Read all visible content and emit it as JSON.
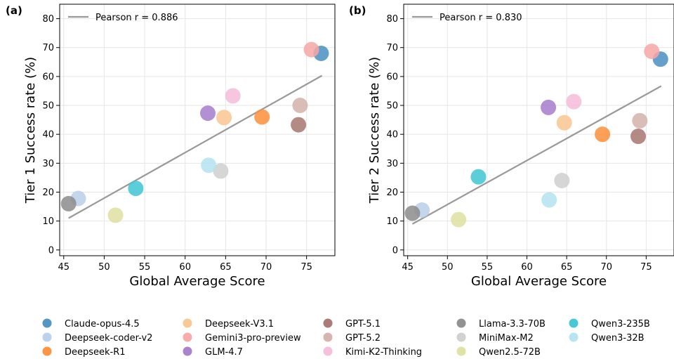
{
  "models": [
    {
      "name": "Claude-opus-4.5",
      "color": "#4a8fc2"
    },
    {
      "name": "Deepseek-coder-v2",
      "color": "#b8cfe9"
    },
    {
      "name": "Deepseek-R1",
      "color": "#fd8f3a"
    },
    {
      "name": "Deepseek-V3.1",
      "color": "#f9c68f"
    },
    {
      "name": "Gemini3-pro-preview",
      "color": "#f7a6a6"
    },
    {
      "name": "GLM-4.7",
      "color": "#a57ccb"
    },
    {
      "name": "GPT-5.1",
      "color": "#a6756e"
    },
    {
      "name": "GPT-5.2",
      "color": "#d3b1aa"
    },
    {
      "name": "Kimi-K2-Thinking",
      "color": "#f5bcd9"
    },
    {
      "name": "Llama-3.3-70B",
      "color": "#8c8c8c"
    },
    {
      "name": "MiniMax-M2",
      "color": "#cfcfcf"
    },
    {
      "name": "Qwen2.5-72B",
      "color": "#dfe0a0"
    },
    {
      "name": "Qwen3-235B",
      "color": "#3ec5d3"
    },
    {
      "name": "Qwen3-32B",
      "color": "#b3e3ee"
    }
  ],
  "chart_data": [
    {
      "type": "scatter",
      "panel_label": "(a)",
      "xlabel": "Global Average Score",
      "ylabel": "Tier 1 Success rate (%)",
      "xlim": [
        44.5,
        78.5
      ],
      "ylim": [
        -2,
        85
      ],
      "xticks": [
        45,
        50,
        55,
        60,
        65,
        70,
        75
      ],
      "yticks": [
        0,
        10,
        20,
        30,
        40,
        50,
        60,
        70,
        80
      ],
      "grid": true,
      "legend": {
        "position": "top-left",
        "entry": "Pearson r = 0.886"
      },
      "fit_line": {
        "x": [
          45.6,
          76.9
        ],
        "y": [
          11.0,
          60.3
        ]
      },
      "points": [
        {
          "model": "Claude-opus-4.5",
          "x": 76.8,
          "y": 68.0
        },
        {
          "model": "Deepseek-coder-v2",
          "x": 46.8,
          "y": 17.8
        },
        {
          "model": "Deepseek-R1",
          "x": 69.5,
          "y": 46.0
        },
        {
          "model": "Deepseek-V3.1",
          "x": 64.8,
          "y": 45.8
        },
        {
          "model": "Gemini3-pro-preview",
          "x": 75.6,
          "y": 69.3
        },
        {
          "model": "GLM-4.7",
          "x": 62.8,
          "y": 47.3
        },
        {
          "model": "GPT-5.1",
          "x": 74.0,
          "y": 43.3
        },
        {
          "model": "GPT-5.2",
          "x": 74.2,
          "y": 50.0
        },
        {
          "model": "Kimi-K2-Thinking",
          "x": 65.9,
          "y": 53.3
        },
        {
          "model": "Llama-3.3-70B",
          "x": 45.6,
          "y": 16.0
        },
        {
          "model": "MiniMax-M2",
          "x": 64.4,
          "y": 27.3
        },
        {
          "model": "Qwen2.5-72B",
          "x": 51.4,
          "y": 12.0
        },
        {
          "model": "Qwen3-235B",
          "x": 53.9,
          "y": 21.3
        },
        {
          "model": "Qwen3-32B",
          "x": 62.9,
          "y": 29.3
        }
      ]
    },
    {
      "type": "scatter",
      "panel_label": "(b)",
      "xlabel": "Global Average Score",
      "ylabel": "Tier 2 Success rate (%)",
      "xlim": [
        44.5,
        78.5
      ],
      "ylim": [
        -2,
        85
      ],
      "xticks": [
        45,
        50,
        55,
        60,
        65,
        70,
        75
      ],
      "yticks": [
        0,
        10,
        20,
        30,
        40,
        50,
        60,
        70,
        80
      ],
      "grid": true,
      "legend": {
        "position": "top-left",
        "entry": "Pearson r = 0.830"
      },
      "fit_line": {
        "x": [
          45.6,
          76.9
        ],
        "y": [
          9.0,
          56.7
        ]
      },
      "points": [
        {
          "model": "Claude-opus-4.5",
          "x": 76.8,
          "y": 66.0
        },
        {
          "model": "Deepseek-coder-v2",
          "x": 46.8,
          "y": 13.8
        },
        {
          "model": "Deepseek-R1",
          "x": 69.5,
          "y": 40.0
        },
        {
          "model": "Deepseek-V3.1",
          "x": 64.7,
          "y": 44.0
        },
        {
          "model": "Gemini3-pro-preview",
          "x": 75.7,
          "y": 68.7
        },
        {
          "model": "GLM-4.7",
          "x": 62.7,
          "y": 49.3
        },
        {
          "model": "GPT-5.1",
          "x": 74.0,
          "y": 39.3
        },
        {
          "model": "GPT-5.2",
          "x": 74.2,
          "y": 44.7
        },
        {
          "model": "Kimi-K2-Thinking",
          "x": 65.9,
          "y": 51.3
        },
        {
          "model": "Llama-3.3-70B",
          "x": 45.6,
          "y": 12.7
        },
        {
          "model": "MiniMax-M2",
          "x": 64.4,
          "y": 24.0
        },
        {
          "model": "Qwen2.5-72B",
          "x": 51.4,
          "y": 10.5
        },
        {
          "model": "Qwen3-235B",
          "x": 53.9,
          "y": 25.3
        },
        {
          "model": "Qwen3-32B",
          "x": 62.8,
          "y": 17.3
        }
      ]
    }
  ]
}
